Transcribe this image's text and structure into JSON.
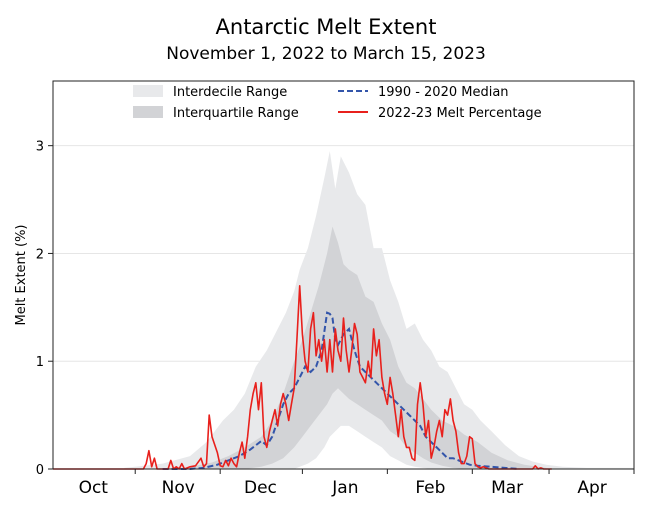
{
  "chart_data": {
    "type": "line",
    "title": "Antarctic Melt Extent",
    "subtitle": "November 1, 2022 to March 15, 2023",
    "ylabel": "Melt Extent (%)",
    "xlabel": "",
    "ylim": [
      0,
      3.6
    ],
    "y_ticks": [
      0,
      1,
      2,
      3
    ],
    "x_ticks": [
      {
        "label": "Oct",
        "x": 30
      },
      {
        "label": "Nov",
        "x": 61
      },
      {
        "label": "Dec",
        "x": 91
      },
      {
        "label": "Jan",
        "x": 122
      },
      {
        "label": "Feb",
        "x": 153
      },
      {
        "label": "Mar",
        "x": 181
      },
      {
        "label": "Apr",
        "x": 212
      }
    ],
    "xlim": [
      0,
      212
    ],
    "grid": "horizontal",
    "legend_placement": "top",
    "legend": [
      {
        "label": "Interdecile Range",
        "kind": "band",
        "color": "#e8e9eb"
      },
      {
        "label": "Interquartile Range",
        "kind": "band",
        "color": "#d2d3d6"
      },
      {
        "label": "1990 - 2020 Median",
        "kind": "dashed",
        "color": "#3355aa"
      },
      {
        "label": "2022-23 Melt Percentage",
        "kind": "line",
        "color": "#e8201c"
      }
    ],
    "interdecile": {
      "x": [
        26,
        40,
        50,
        56,
        62,
        66,
        70,
        74,
        78,
        82,
        85,
        88,
        90,
        93,
        96,
        99,
        101,
        103,
        105,
        108,
        111,
        114,
        117,
        120,
        123,
        126,
        129,
        132,
        135,
        138,
        141,
        144,
        147,
        150,
        153,
        156,
        160,
        165,
        170,
        175,
        180,
        186,
        195,
        212
      ],
      "upper": [
        0.01,
        0.05,
        0.12,
        0.25,
        0.45,
        0.55,
        0.7,
        0.95,
        1.1,
        1.3,
        1.45,
        1.65,
        1.85,
        2.05,
        2.35,
        2.7,
        2.95,
        2.6,
        2.9,
        2.75,
        2.55,
        2.45,
        2.05,
        2.05,
        1.75,
        1.55,
        1.3,
        1.35,
        1.2,
        1.1,
        0.95,
        0.9,
        0.75,
        0.6,
        0.55,
        0.45,
        0.35,
        0.22,
        0.12,
        0.07,
        0.04,
        0.02,
        0.01,
        0.01
      ],
      "lower": [
        0,
        0,
        0,
        0,
        0,
        0,
        0,
        0,
        0,
        0,
        0,
        0,
        0.02,
        0.05,
        0.1,
        0.2,
        0.3,
        0.35,
        0.4,
        0.4,
        0.35,
        0.3,
        0.25,
        0.2,
        0.12,
        0.08,
        0.04,
        0.02,
        0.01,
        0,
        0,
        0,
        0,
        0,
        0,
        0,
        0,
        0,
        0,
        0,
        0,
        0,
        0,
        0
      ]
    },
    "interquartile": {
      "x": [
        50,
        58,
        64,
        70,
        76,
        80,
        84,
        88,
        91,
        94,
        97,
        100,
        102,
        104,
        106,
        108,
        111,
        114,
        117,
        120,
        123,
        126,
        129,
        132,
        135,
        138,
        142,
        146,
        150,
        155,
        160,
        166,
        172,
        180
      ],
      "upper": [
        0.02,
        0.06,
        0.12,
        0.2,
        0.3,
        0.45,
        0.7,
        1.0,
        1.2,
        1.45,
        1.7,
        2.0,
        2.25,
        2.1,
        1.9,
        1.85,
        1.8,
        1.6,
        1.55,
        1.35,
        1.2,
        0.95,
        0.8,
        0.75,
        0.65,
        0.55,
        0.45,
        0.4,
        0.32,
        0.25,
        0.15,
        0.08,
        0.04,
        0.01
      ],
      "lower": [
        0,
        0,
        0,
        0,
        0.02,
        0.05,
        0.1,
        0.2,
        0.3,
        0.4,
        0.5,
        0.6,
        0.7,
        0.75,
        0.7,
        0.65,
        0.6,
        0.55,
        0.5,
        0.45,
        0.35,
        0.3,
        0.2,
        0.15,
        0.1,
        0.06,
        0.03,
        0.01,
        0,
        0,
        0,
        0,
        0,
        0
      ]
    },
    "series": [
      {
        "name": "1990 - 2020 Median",
        "x": [
          40,
          50,
          55,
          60,
          64,
          68,
          72,
          74,
          76,
          78,
          80,
          82,
          84,
          86,
          88,
          90,
          92,
          94,
          96,
          98,
          100,
          101,
          102,
          103,
          104,
          106,
          108,
          110,
          112,
          114,
          116,
          118,
          120,
          122,
          124,
          126,
          128,
          130,
          132,
          134,
          136,
          138,
          140,
          142,
          144,
          146,
          148,
          150,
          152,
          155,
          160,
          170
        ],
        "y": [
          0,
          0,
          0.01,
          0.04,
          0.08,
          0.12,
          0.18,
          0.22,
          0.26,
          0.22,
          0.3,
          0.45,
          0.6,
          0.7,
          0.75,
          0.85,
          0.95,
          0.9,
          0.95,
          1.1,
          1.45,
          1.44,
          1.4,
          1.2,
          1.15,
          1.25,
          1.3,
          1.1,
          0.95,
          0.9,
          0.85,
          0.8,
          0.75,
          0.7,
          0.65,
          0.6,
          0.55,
          0.5,
          0.45,
          0.4,
          0.3,
          0.25,
          0.2,
          0.15,
          0.1,
          0.1,
          0.08,
          0.06,
          0.04,
          0.03,
          0.02,
          0
        ]
      },
      {
        "name": "2022-23 Melt Percentage",
        "x": [
          0,
          26,
          33,
          34,
          35,
          36,
          37,
          38,
          40,
          42,
          43,
          44,
          45,
          46,
          47,
          48,
          50,
          52,
          54,
          55,
          56,
          57,
          58,
          60,
          61,
          62,
          63,
          64,
          65,
          66,
          67,
          68,
          69,
          70,
          71,
          72,
          73,
          74,
          75,
          76,
          77,
          78,
          79,
          80,
          81,
          82,
          83,
          84,
          85,
          86,
          87,
          88,
          89,
          90,
          91,
          92,
          93,
          94,
          95,
          96,
          97,
          98,
          99,
          100,
          101,
          102,
          103,
          104,
          105,
          106,
          107,
          108,
          109,
          110,
          111,
          112,
          113,
          114,
          115,
          116,
          117,
          118,
          119,
          120,
          121,
          122,
          123,
          124,
          125,
          126,
          127,
          128,
          129,
          130,
          131,
          132,
          133,
          134,
          135,
          136,
          137,
          138,
          139,
          140,
          141,
          142,
          143,
          144,
          145,
          146,
          147,
          148,
          149,
          150,
          151,
          152,
          153,
          154,
          155,
          156,
          157,
          158,
          159,
          160,
          165,
          170,
          175,
          176,
          177,
          178,
          179,
          182
        ],
        "y": [
          0,
          0,
          0,
          0.05,
          0.17,
          0.02,
          0.1,
          0,
          0,
          0,
          0.08,
          0,
          0.02,
          0,
          0.05,
          0,
          0.02,
          0.03,
          0.1,
          0.02,
          0.05,
          0.5,
          0.3,
          0.15,
          0.03,
          0.02,
          0.08,
          0.03,
          0.1,
          0.05,
          0.02,
          0.15,
          0.25,
          0.1,
          0.3,
          0.55,
          0.7,
          0.8,
          0.55,
          0.8,
          0.3,
          0.2,
          0.35,
          0.45,
          0.55,
          0.4,
          0.6,
          0.7,
          0.6,
          0.45,
          0.6,
          0.75,
          1.2,
          1.7,
          1.25,
          1.0,
          0.9,
          1.3,
          1.45,
          1.05,
          1.2,
          1.0,
          1.2,
          0.9,
          1.2,
          0.9,
          1.3,
          1.1,
          1.0,
          1.4,
          1.1,
          0.9,
          1.1,
          1.35,
          1.25,
          0.9,
          0.85,
          0.8,
          1.0,
          0.85,
          1.3,
          1.05,
          1.2,
          0.85,
          0.7,
          0.6,
          0.85,
          0.7,
          0.5,
          0.3,
          0.55,
          0.3,
          0.2,
          0.2,
          0.1,
          0.08,
          0.6,
          0.8,
          0.6,
          0.3,
          0.45,
          0.1,
          0.2,
          0.35,
          0.45,
          0.3,
          0.55,
          0.5,
          0.65,
          0.45,
          0.35,
          0.15,
          0.05,
          0.05,
          0.12,
          0.3,
          0.28,
          0.05,
          0.02,
          0.01,
          0.02,
          0.01,
          0,
          0,
          0,
          0,
          0,
          0.03,
          0,
          0.01,
          0,
          0
        ]
      }
    ]
  }
}
